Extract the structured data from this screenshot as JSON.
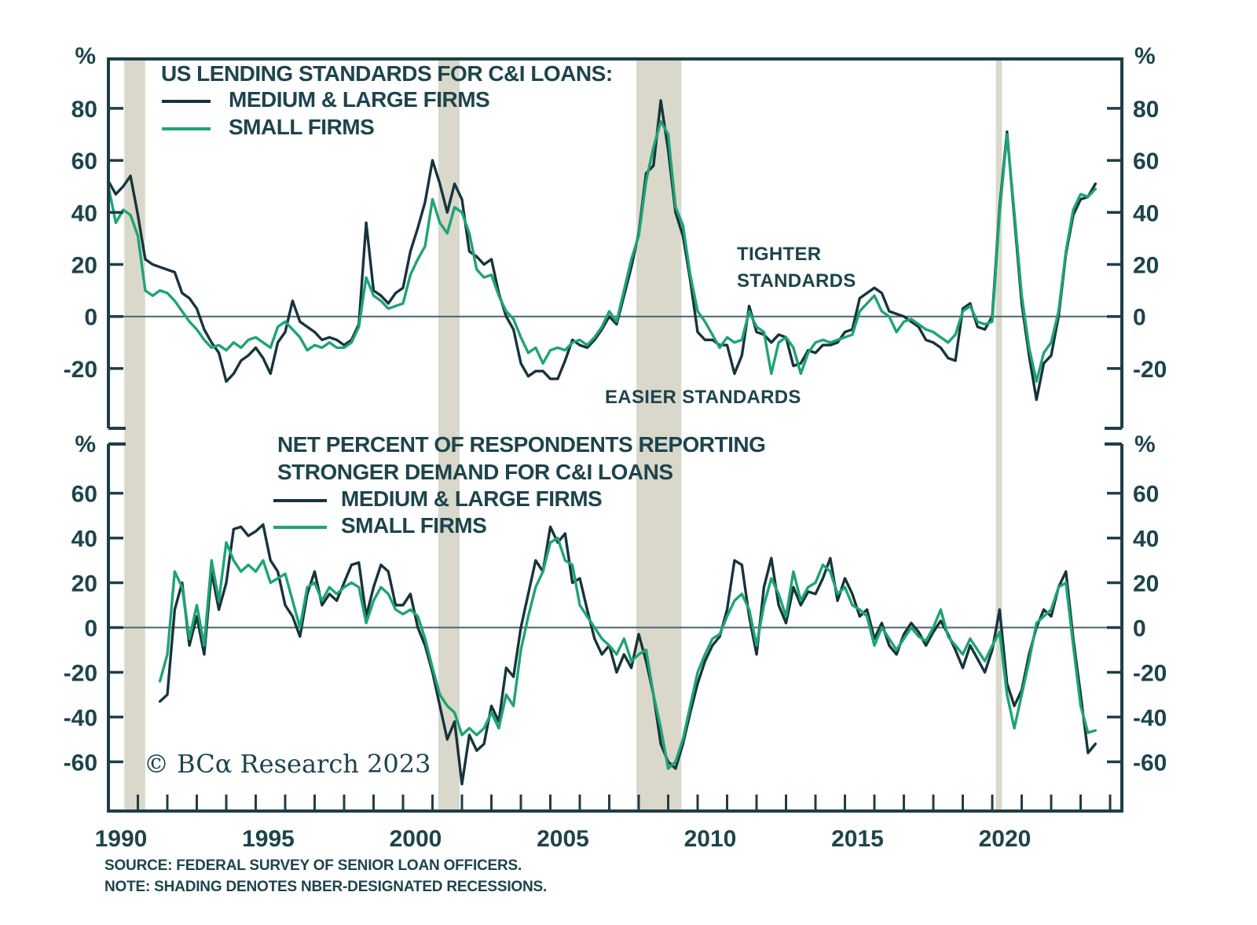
{
  "colors": {
    "dark_series": "#17343e",
    "green_series": "#1ea473",
    "axis": "#1e3e48",
    "zero_line": "#48656e",
    "text": "#1d444d",
    "recession_shading": "#d9d8cb",
    "background": "#ffffff"
  },
  "axis_unit": "%",
  "top_panel": {
    "title": "US LENDING STANDARDS FOR C&I LOANS:",
    "legend": [
      {
        "label": "MEDIUM & LARGE FIRMS"
      },
      {
        "label": "SMALL FIRMS"
      }
    ],
    "annotation_tighter_line1": "TIGHTER",
    "annotation_tighter_line2": "STANDARDS",
    "annotation_easier": "EASIER STANDARDS"
  },
  "bottom_panel": {
    "title_line1": "NET PERCENT OF RESPONDENTS REPORTING",
    "title_line2": "STRONGER DEMAND FOR C&I LOANS",
    "legend": [
      {
        "label": "MEDIUM & LARGE FIRMS"
      },
      {
        "label": "SMALL FIRMS"
      }
    ]
  },
  "copyright": "© BCα Research 2023",
  "footer": {
    "source": "SOURCE: FEDERAL SURVEY OF SENIOR LOAN OFFICERS.",
    "note": "NOTE: SHADING DENOTES NBER-DESIGNATED RECESSIONS."
  },
  "x_axis": {
    "tick_start": 1990,
    "tick_end": 2024,
    "label_years": [
      1990,
      1995,
      2000,
      2005,
      2010,
      2015,
      2020
    ]
  },
  "chart_data": [
    {
      "type": "line",
      "title": "US LENDING STANDARDS FOR C&I LOANS:",
      "ylabel": "%",
      "x_start": 1990.0,
      "x_step": 0.25,
      "xlim": [
        1990,
        2024.4
      ],
      "ylim": [
        -43,
        99
      ],
      "yticks": [
        80,
        60,
        40,
        20,
        0,
        -20
      ],
      "grid": false,
      "legend_position": "top-left-inside",
      "recessions": [
        [
          1990.54,
          1991.25
        ],
        [
          2001.2,
          2001.92
        ],
        [
          2007.92,
          2009.45
        ],
        [
          2020.12,
          2020.33
        ]
      ],
      "series": [
        {
          "name": "MEDIUM & LARGE FIRMS",
          "color": "#17343e",
          "values": [
            52,
            47,
            50,
            54,
            39,
            22,
            20,
            19,
            18,
            17,
            9,
            7,
            3,
            -5,
            -10,
            -14,
            -25,
            -22,
            -17,
            -15,
            -12,
            -16,
            -22,
            -10,
            -6,
            6,
            -2,
            -4,
            -6,
            -9,
            -8,
            -9,
            -11,
            -9,
            -3,
            36,
            10,
            8,
            5,
            9,
            11,
            25,
            34,
            44,
            60,
            51,
            40,
            51,
            45,
            25,
            23,
            20,
            22,
            9,
            0,
            -5,
            -18,
            -23,
            -21,
            -21,
            -24,
            -24,
            -17,
            -9,
            -11,
            -12,
            -9,
            -5,
            0,
            -3,
            8,
            19,
            32,
            55,
            58,
            83,
            64,
            40,
            31,
            14,
            -6,
            -9,
            -9,
            -11,
            -11,
            -22,
            -15,
            4,
            -6,
            -7,
            -10,
            -7,
            -8,
            -19,
            -18,
            -13,
            -14,
            -11,
            -11,
            -10,
            -6,
            -5,
            7,
            9,
            11,
            9,
            2,
            1,
            0,
            -2,
            -4,
            -9,
            -10,
            -12,
            -16,
            -17,
            3,
            5,
            -4,
            -5,
            0,
            42,
            71,
            38,
            5,
            -15,
            -32,
            -18,
            -15,
            0,
            24,
            39,
            45,
            46,
            51
          ]
        },
        {
          "name": "SMALL FIRMS",
          "color": "#1ea473",
          "values": [
            50,
            36,
            41,
            39,
            31,
            10,
            8,
            10,
            9,
            6,
            2,
            -2,
            -5,
            -9,
            -12,
            -11,
            -13,
            -10,
            -12,
            -9,
            -8,
            -10,
            -12,
            -4,
            -2,
            -5,
            -8,
            -13,
            -11,
            -12,
            -10,
            -12,
            -12,
            -10,
            -4,
            15,
            8,
            6,
            3,
            4,
            5,
            16,
            22,
            27,
            45,
            36,
            32,
            42,
            40,
            32,
            18,
            15,
            16,
            8,
            2,
            -1,
            -8,
            -14,
            -12,
            -18,
            -13,
            -12,
            -13,
            -10,
            -9,
            -11,
            -8,
            -4,
            2,
            -2,
            10,
            22,
            31,
            52,
            65,
            75,
            70,
            42,
            35,
            16,
            2,
            -2,
            -7,
            -12,
            -8,
            -10,
            -9,
            2,
            -4,
            -6,
            -22,
            -10,
            -8,
            -12,
            -22,
            -14,
            -10,
            -9,
            -10,
            -9,
            -8,
            -7,
            2,
            5,
            8,
            2,
            0,
            -6,
            -2,
            -1,
            -3,
            -5,
            -6,
            -8,
            -10,
            -7,
            2,
            4,
            -2,
            -3,
            -2,
            40,
            70,
            40,
            8,
            -12,
            -25,
            -14,
            -10,
            2,
            25,
            41,
            47,
            46,
            49
          ]
        }
      ]
    },
    {
      "type": "line",
      "title": "NET PERCENT OF RESPONDENTS REPORTING STRONGER DEMAND FOR C&I LOANS",
      "ylabel": "%",
      "x_start": 1991.75,
      "x_step": 0.25,
      "xlim": [
        1990,
        2024.4
      ],
      "ylim": [
        -82,
        82
      ],
      "yticks": [
        60,
        40,
        20,
        0,
        -20,
        -40,
        -60
      ],
      "grid": false,
      "legend_position": "top-inside",
      "series": [
        {
          "name": "MEDIUM & LARGE FIRMS",
          "color": "#17343e",
          "values": [
            -33,
            -30,
            8,
            20,
            -8,
            5,
            -12,
            25,
            8,
            20,
            44,
            45,
            41,
            43,
            46,
            30,
            25,
            10,
            5,
            -4,
            15,
            25,
            10,
            15,
            12,
            20,
            28,
            29,
            5,
            18,
            28,
            25,
            10,
            10,
            15,
            0,
            -8,
            -20,
            -35,
            -50,
            -42,
            -70,
            -48,
            -55,
            -52,
            -35,
            -42,
            -18,
            -22,
            0,
            15,
            30,
            25,
            45,
            38,
            42,
            20,
            22,
            8,
            -5,
            -12,
            -8,
            -20,
            -12,
            -18,
            -3,
            -15,
            -30,
            -52,
            -60,
            -63,
            -52,
            -38,
            -25,
            -15,
            -8,
            -4,
            8,
            30,
            28,
            5,
            -12,
            18,
            31,
            10,
            2,
            18,
            10,
            16,
            15,
            22,
            31,
            12,
            22,
            15,
            5,
            8,
            -5,
            2,
            -8,
            -12,
            -3,
            2,
            -2,
            -8,
            -2,
            3,
            -3,
            -10,
            -18,
            -8,
            -14,
            -20,
            -10,
            8,
            -25,
            -35,
            -28,
            -12,
            0,
            8,
            5,
            18,
            25,
            -5,
            -30,
            -56,
            -52
          ]
        },
        {
          "name": "SMALL FIRMS",
          "color": "#1ea473",
          "values": [
            -24,
            -12,
            25,
            18,
            -5,
            10,
            -8,
            30,
            12,
            38,
            30,
            25,
            28,
            25,
            30,
            20,
            22,
            24,
            12,
            0,
            18,
            20,
            12,
            18,
            15,
            18,
            20,
            18,
            2,
            12,
            18,
            15,
            8,
            6,
            8,
            5,
            -5,
            -18,
            -30,
            -35,
            -38,
            -48,
            -45,
            -48,
            -45,
            -38,
            -45,
            -30,
            -35,
            -10,
            5,
            18,
            25,
            38,
            40,
            30,
            28,
            10,
            5,
            0,
            -5,
            -8,
            -12,
            -5,
            -15,
            -12,
            -10,
            -30,
            -45,
            -63,
            -60,
            -50,
            -35,
            -20,
            -12,
            -5,
            -3,
            5,
            12,
            15,
            8,
            -8,
            10,
            22,
            15,
            5,
            25,
            12,
            18,
            20,
            28,
            25,
            15,
            18,
            10,
            8,
            5,
            -8,
            0,
            -5,
            -10,
            -5,
            0,
            -4,
            -6,
            0,
            8,
            -4,
            -8,
            -12,
            -5,
            -10,
            -15,
            -8,
            -2,
            -30,
            -45,
            -30,
            -15,
            2,
            5,
            8,
            18,
            20,
            -8,
            -35,
            -47,
            -46
          ]
        }
      ]
    }
  ]
}
